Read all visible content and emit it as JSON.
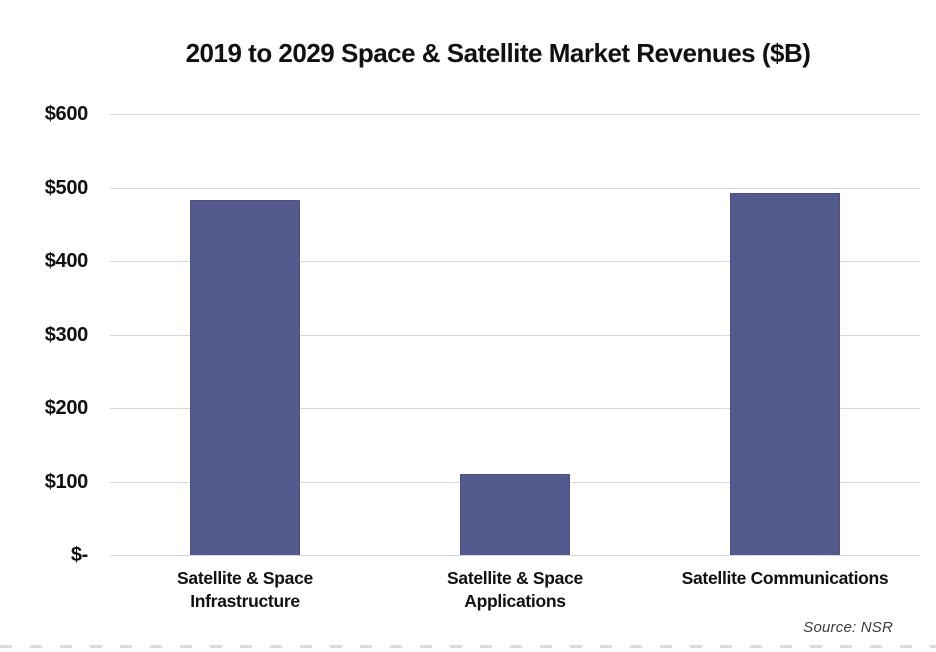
{
  "title": "2019 to 2029 Space & Satellite Market Revenues ($B)",
  "source_note": "Source: NSR",
  "colors": {
    "bar": "#545a8e",
    "bar_border": "#4a5080",
    "gridline": "#d9d9d9",
    "bottom_dashes": "#dcdcdc",
    "text": "#111111"
  },
  "chart_data": {
    "type": "bar",
    "title": "2019 to 2029 Space & Satellite Market Revenues ($B)",
    "categories": [
      "Satellite & Space Infrastructure",
      "Satellite & Space Applications",
      "Satellite Communications"
    ],
    "category_lines": [
      [
        "Satellite & Space",
        "Infrastructure"
      ],
      [
        "Satellite & Space",
        "Applications"
      ],
      [
        "Satellite Communications"
      ]
    ],
    "values": [
      483,
      110,
      493
    ],
    "units": "$B",
    "xlabel": "",
    "ylabel": "",
    "ylim": [
      0,
      600
    ],
    "ytick_interval": 100,
    "ytick_labels_top_to_bottom": [
      "$600",
      "$500",
      "$400",
      "$300",
      "$200",
      "$100",
      "$-"
    ],
    "grid": "horizontal",
    "legend": "none",
    "source": "Source: NSR",
    "bar_color": "#545a8e"
  }
}
